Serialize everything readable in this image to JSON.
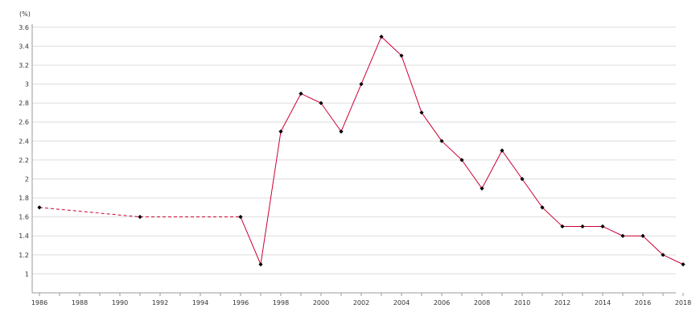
{
  "chart_data": {
    "type": "line",
    "ylabel": "(%)",
    "ylim": [
      0.8,
      3.7
    ],
    "yticks": [
      1,
      1.2,
      1.4,
      1.6,
      1.8,
      2,
      2.2,
      2.4,
      2.6,
      2.8,
      3,
      3.2,
      3.4,
      3.6
    ],
    "xlim": [
      1986,
      2018
    ],
    "xticks": [
      1986,
      1988,
      1990,
      1992,
      1994,
      1996,
      1998,
      2000,
      2002,
      2004,
      2006,
      2008,
      2010,
      2012,
      2014,
      2016,
      2018
    ],
    "grid": true,
    "series": [
      {
        "x": [
          1986,
          1991,
          1996,
          1997,
          1998,
          1999,
          2000,
          2001,
          2002,
          2003,
          2004,
          2005,
          2006,
          2007,
          2008,
          2009,
          2010,
          2011,
          2012,
          2013,
          2014,
          2015,
          2016,
          2017,
          2018
        ],
        "values": [
          1.7,
          1.6,
          1.6,
          1.1,
          2.5,
          2.9,
          2.8,
          2.5,
          3.0,
          3.5,
          3.3,
          2.7,
          2.4,
          2.2,
          1.9,
          2.3,
          2.0,
          1.7,
          1.5,
          1.5,
          1.5,
          1.4,
          1.4,
          1.2,
          1.1
        ],
        "line_color": "#cc0033",
        "marker_color": "#000000",
        "dashed_until": 1996
      }
    ]
  }
}
